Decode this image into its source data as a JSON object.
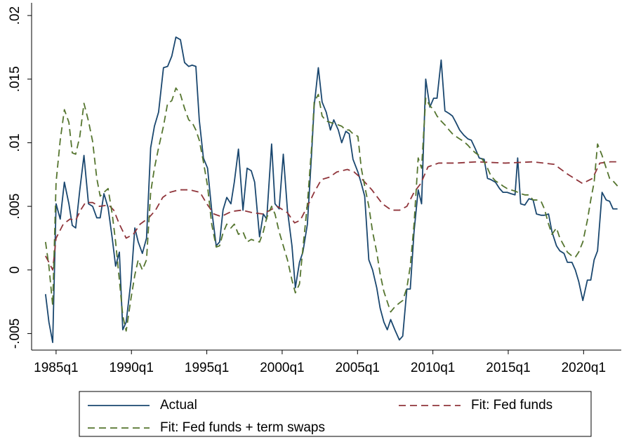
{
  "chart_data": {
    "type": "line",
    "xlim": [
      93.5,
      250
    ],
    "ylim": [
      -0.0063,
      0.021
    ],
    "xticks": [
      {
        "value": 100,
        "label": "1985q1"
      },
      {
        "value": 120,
        "label": "1990q1"
      },
      {
        "value": 140,
        "label": "1995q1"
      },
      {
        "value": 160,
        "label": "2000q1"
      },
      {
        "value": 180,
        "label": "2005q1"
      },
      {
        "value": 200,
        "label": "2010q1"
      },
      {
        "value": 220,
        "label": "2015q1"
      },
      {
        "value": 240,
        "label": "2020q1"
      }
    ],
    "yticks": [
      {
        "value": -0.005,
        "label": "-.005"
      },
      0,
      {
        "value": 0.005,
        "label": ".005"
      },
      {
        "value": 0.01,
        "label": ".01"
      },
      {
        "value": 0.015,
        "label": ".015"
      },
      {
        "value": 0.02,
        "label": ".02"
      }
    ],
    "grid": false,
    "legend": "bottom",
    "series": [
      {
        "name": "Actual",
        "color": "#1a476f",
        "dash": "none",
        "x": [
          97.2,
          98.1,
          99.1,
          100,
          101.1,
          102.2,
          103.4,
          104.3,
          105.2,
          106.3,
          107.4,
          108.6,
          109.7,
          110.8,
          111.7,
          112.7,
          113.8,
          114.9,
          115.8,
          116.8,
          117.7,
          118.6,
          119.9,
          120.9,
          121.8,
          122.9,
          124.0,
          125.1,
          126.1,
          127.2,
          128.5,
          129.6,
          130.7,
          131.8,
          133.0,
          134.1,
          135.2,
          136.1,
          137.1,
          138.0,
          139.1,
          140.2,
          141.3,
          142.5,
          143.4,
          144.3,
          145.3,
          146.4,
          147.3,
          148.4,
          149.6,
          150.7,
          151.8,
          152.7,
          154.0,
          155.0,
          155.9,
          157.2,
          158.1,
          159.2,
          160.3,
          161.4,
          162.6,
          163.5,
          164.6,
          165.5,
          166.7,
          167.8,
          168.5,
          169.6,
          170.6,
          171.7,
          172.8,
          173.7,
          174.9,
          175.8,
          176.9,
          177.8,
          178.8,
          180.1,
          181.0,
          181.9,
          183.0,
          184.0,
          185.1,
          186.0,
          187.0,
          187.9,
          188.8,
          189.9,
          191.1,
          192.0,
          193.1,
          194.0,
          195.0,
          196.1,
          197.0,
          198.1,
          199.2,
          200.2,
          201.1,
          202.2,
          203.2,
          204.3,
          205.2,
          206.1,
          207.1,
          208.2,
          209.3,
          210.2,
          211.3,
          212.3,
          213.6,
          214.5,
          215.4,
          216.6,
          217.7,
          218.6,
          219.7,
          220.7,
          221.8,
          222.5,
          223.3,
          224.4,
          225.5,
          226.6,
          227.5,
          228.7,
          229.6,
          230.7,
          231.6,
          232.8,
          233.7,
          234.8,
          235.7,
          236.9,
          237.8,
          238.7,
          239.8,
          241.0,
          241.9,
          242.8,
          243.7,
          244.9,
          246.0,
          246.9,
          247.8,
          249.0
        ],
        "values": [
          -0.0019,
          -0.0041,
          -0.0057,
          0.0052,
          0.004,
          0.0069,
          0.0052,
          0.0035,
          0.0033,
          0.0063,
          0.009,
          0.0052,
          0.005,
          0.0041,
          0.0041,
          0.006,
          0.0049,
          0.0025,
          0.0003,
          0.0014,
          -0.0047,
          -0.0041,
          -0.0008,
          0.0033,
          0.0022,
          0.0013,
          0.0025,
          0.0096,
          0.0113,
          0.0124,
          0.0159,
          0.016,
          0.0168,
          0.0183,
          0.0181,
          0.0163,
          0.016,
          0.0161,
          0.016,
          0.0118,
          0.0088,
          0.008,
          0.0047,
          0.0019,
          0.0022,
          0.0047,
          0.0057,
          0.0052,
          0.0069,
          0.0095,
          0.0047,
          0.008,
          0.0078,
          0.0069,
          0.0026,
          0.0044,
          0.004,
          0.0099,
          0.0052,
          0.0048,
          0.0091,
          0.0047,
          0.0019,
          -0.0014,
          0.0006,
          0.0014,
          0.0036,
          0.0091,
          0.0129,
          0.0159,
          0.0132,
          0.0124,
          0.011,
          0.0118,
          0.011,
          0.01,
          0.0109,
          0.0107,
          0.0087,
          0.0077,
          0.0068,
          0.0058,
          0.0008,
          0.0,
          -0.0014,
          -0.003,
          -0.0041,
          -0.0047,
          -0.0039,
          -0.0047,
          -0.0055,
          -0.0052,
          -0.0015,
          -0.0015,
          0.003,
          0.0063,
          0.0052,
          0.015,
          0.0128,
          0.0135,
          0.0135,
          0.0165,
          0.0125,
          0.0123,
          0.0121,
          0.0116,
          0.011,
          0.0106,
          0.0103,
          0.0102,
          0.0095,
          0.0088,
          0.0087,
          0.0072,
          0.0071,
          0.0069,
          0.0064,
          0.0061,
          0.0061,
          0.006,
          0.0059,
          0.0088,
          0.0052,
          0.0051,
          0.0056,
          0.0055,
          0.0044,
          0.0043,
          0.0043,
          0.0044,
          0.003,
          0.0019,
          0.0015,
          0.0013,
          0.0006,
          0.0006,
          0.0,
          -0.0009,
          -0.0024,
          -0.0008,
          -0.0008,
          0.0008,
          0.0015,
          0.0061,
          0.0055,
          0.0054,
          0.0048,
          0.0048
        ]
      },
      {
        "name": "Fit: Fed funds",
        "color": "#90353b",
        "dash": "10 6",
        "x": [
          97.2,
          98.1,
          99.1,
          100,
          101.9,
          103.7,
          105.2,
          106.5,
          107.8,
          109.7,
          111.5,
          114.0,
          115.3,
          116.8,
          118.6,
          120.5,
          122.3,
          124.6,
          126.4,
          128.3,
          130.2,
          132.6,
          135.4,
          138.2,
          140.0,
          141.9,
          143.8,
          146.6,
          149.3,
          152.1,
          154.9,
          156.8,
          158.7,
          161.4,
          163.3,
          164.8,
          166.7,
          168.5,
          170.4,
          172.6,
          174.5,
          177.3,
          179.1,
          181.0,
          183.8,
          186.6,
          189.0,
          191.2,
          193.1,
          195.0,
          196.8,
          198.7,
          201.5,
          206.1,
          211.7,
          219.2,
          226.6,
          232.2,
          235.9,
          239.7,
          242.4,
          244.3,
          247.1,
          249.0
        ],
        "values": [
          0.0011,
          0.0006,
          0.0,
          0.0025,
          0.0036,
          0.004,
          0.0039,
          0.0047,
          0.0053,
          0.0053,
          0.005,
          0.0051,
          0.0047,
          0.0036,
          0.0025,
          0.0028,
          0.0036,
          0.0041,
          0.0047,
          0.0057,
          0.0061,
          0.0063,
          0.0063,
          0.0061,
          0.0052,
          0.0044,
          0.0042,
          0.0046,
          0.0047,
          0.0045,
          0.0044,
          0.0047,
          0.005,
          0.0045,
          0.0037,
          0.0039,
          0.005,
          0.0061,
          0.0071,
          0.0073,
          0.0077,
          0.0079,
          0.0077,
          0.0072,
          0.0063,
          0.0052,
          0.0047,
          0.0047,
          0.005,
          0.0061,
          0.0068,
          0.0081,
          0.0084,
          0.0084,
          0.0085,
          0.0084,
          0.0085,
          0.0083,
          0.0075,
          0.0068,
          0.0072,
          0.0084,
          0.0085,
          0.0085
        ]
      },
      {
        "name": "Fit: Fed funds + term swaps",
        "color": "#55752f",
        "dash": "10 6",
        "x": [
          97.2,
          98.1,
          99.1,
          100,
          101.1,
          102.2,
          103.4,
          104.3,
          105.2,
          106.3,
          107.4,
          108.6,
          109.7,
          110.8,
          111.7,
          112.7,
          113.8,
          114.9,
          115.8,
          116.8,
          117.7,
          118.6,
          119.9,
          120.9,
          121.8,
          122.9,
          124.0,
          125.1,
          126.1,
          127.2,
          128.5,
          129.6,
          130.7,
          131.8,
          133.0,
          134.1,
          135.2,
          136.1,
          137.1,
          138.0,
          139.1,
          140.2,
          141.3,
          142.5,
          143.4,
          144.3,
          145.3,
          146.4,
          147.3,
          148.4,
          149.6,
          150.7,
          151.8,
          152.7,
          154.0,
          155.0,
          155.9,
          157.2,
          158.1,
          159.2,
          160.3,
          161.4,
          162.6,
          163.5,
          164.6,
          165.5,
          166.7,
          167.8,
          168.5,
          169.6,
          170.6,
          171.7,
          172.8,
          173.7,
          174.9,
          175.8,
          176.9,
          177.8,
          178.8,
          180.1,
          181.0,
          181.9,
          183.0,
          184.0,
          185.1,
          186.0,
          187.0,
          187.9,
          188.8,
          189.9,
          191.1,
          192.0,
          193.1,
          194.0,
          195.0,
          196.1,
          197.0,
          198.1,
          199.2,
          200.2,
          201.1,
          202.2,
          203.2,
          204.3,
          205.2,
          206.1,
          207.1,
          208.2,
          209.3,
          210.2,
          211.3,
          212.3,
          213.6,
          214.5,
          215.4,
          216.6,
          217.7,
          218.6,
          219.7,
          220.7,
          221.8,
          223.3,
          224.4,
          225.5,
          226.6,
          227.5,
          228.7,
          229.6,
          230.7,
          231.6,
          232.8,
          233.7,
          234.8,
          235.7,
          236.9,
          237.8,
          238.7,
          239.8,
          241.0,
          241.9,
          242.8,
          243.7,
          244.9,
          246.0,
          246.9,
          247.8,
          249.0
        ],
        "values": [
          0.0022,
          0.0003,
          -0.0028,
          0.0069,
          0.0102,
          0.0126,
          0.0116,
          0.0092,
          0.0091,
          0.0105,
          0.0131,
          0.0117,
          0.0101,
          0.0072,
          0.0058,
          0.0061,
          0.0064,
          0.0044,
          0.0022,
          -0.0008,
          -0.0036,
          -0.0048,
          -0.0022,
          -0.0004,
          0.0008,
          0.0,
          0.0008,
          0.0061,
          0.008,
          0.0096,
          0.0113,
          0.0131,
          0.0133,
          0.0143,
          0.0138,
          0.0127,
          0.0118,
          0.0116,
          0.011,
          0.0102,
          0.0085,
          0.0066,
          0.0036,
          0.0018,
          0.0019,
          0.0029,
          0.0036,
          0.0033,
          0.0036,
          0.0028,
          0.003,
          0.0022,
          0.0024,
          0.0023,
          0.0022,
          0.003,
          0.0041,
          0.005,
          0.0044,
          0.003,
          0.0019,
          0.0008,
          -0.0008,
          -0.0018,
          -0.0011,
          0.0017,
          0.0052,
          0.0096,
          0.0132,
          0.0138,
          0.0121,
          0.0117,
          0.0116,
          0.0115,
          0.0114,
          0.0113,
          0.011,
          0.011,
          0.0107,
          0.0105,
          0.008,
          0.0066,
          0.005,
          0.003,
          0.0014,
          -0.0003,
          -0.0017,
          -0.0025,
          -0.0033,
          -0.0029,
          -0.0026,
          -0.0024,
          -0.0014,
          0.0003,
          0.0036,
          0.0088,
          0.008,
          0.0135,
          0.0129,
          0.0126,
          0.0121,
          0.0117,
          0.0114,
          0.011,
          0.0107,
          0.0105,
          0.0103,
          0.0101,
          0.0098,
          0.0095,
          0.0092,
          0.009,
          0.0085,
          0.008,
          0.0074,
          0.007,
          0.0068,
          0.0066,
          0.0064,
          0.0063,
          0.0062,
          0.006,
          0.0059,
          0.0059,
          0.0055,
          0.0055,
          0.0054,
          0.0048,
          0.0036,
          0.0028,
          0.0033,
          0.0025,
          0.0019,
          0.0014,
          0.0011,
          0.001,
          0.0014,
          0.0022,
          0.0039,
          0.0055,
          0.0069,
          0.0099,
          0.009,
          0.008,
          0.0072,
          0.007,
          0.0066
        ]
      }
    ]
  }
}
